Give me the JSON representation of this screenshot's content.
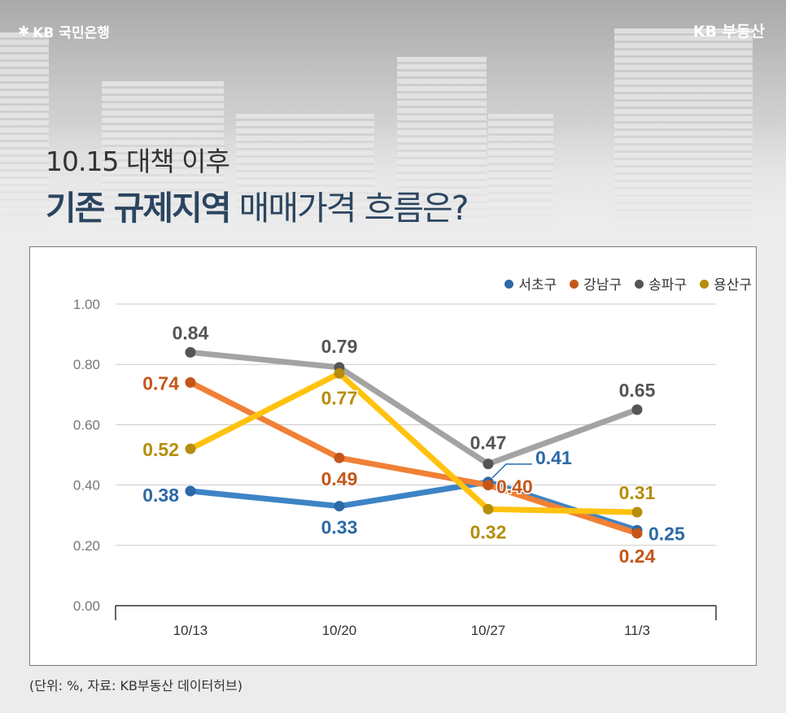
{
  "header": {
    "bank_logo": "KB 국민은행",
    "brand": "KB 부동산",
    "title_line1": "10.15 대책 이후",
    "title_bold": "기존 규제지역",
    "title_rest": " 매매가격 흐름은?"
  },
  "source": "(단위: %, 자료:  KB부동산 데이터허브)",
  "chart_data": {
    "type": "line",
    "categories": [
      "10/13",
      "10/20",
      "10/27",
      "11/3"
    ],
    "ylim": [
      0,
      1
    ],
    "yticks": [
      "0.00",
      "0.20",
      "0.40",
      "0.60",
      "0.80",
      "1.00"
    ],
    "grid": true,
    "legend_position": "top-right",
    "series": [
      {
        "name": "서초구",
        "color": "#3d84c6",
        "label_color": "#2c69a6",
        "values": [
          0.38,
          0.33,
          0.41,
          0.25
        ]
      },
      {
        "name": "강남구",
        "color": "#f08036",
        "label_color": "#c4561a",
        "values": [
          0.74,
          0.49,
          0.4,
          0.24
        ]
      },
      {
        "name": "송파구",
        "color": "#a3a3a3",
        "label_color": "#555555",
        "values": [
          0.84,
          0.79,
          0.47,
          0.65
        ]
      },
      {
        "name": "용산구",
        "color": "#ffc20e",
        "label_color": "#b68d0c",
        "values": [
          0.52,
          0.77,
          0.32,
          0.31
        ]
      }
    ]
  }
}
